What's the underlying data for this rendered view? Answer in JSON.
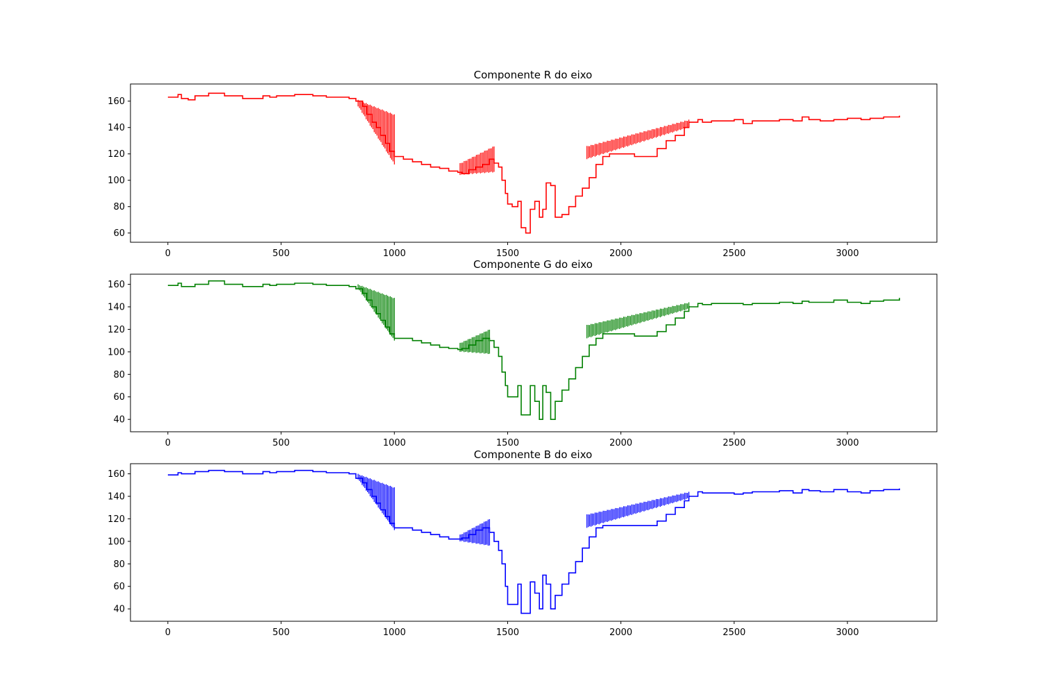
{
  "chart_data": [
    {
      "type": "line",
      "title": "Componente R do eixo",
      "color": "#ff0000",
      "xlim": [
        -165,
        3395
      ],
      "ylim": [
        53,
        173
      ],
      "xticks": [
        0,
        500,
        1000,
        1500,
        2000,
        2500,
        3000
      ],
      "yticks": [
        60,
        80,
        100,
        120,
        140,
        160
      ],
      "series": [
        {
          "x": [
            0,
            30,
            45,
            60,
            90,
            120,
            160,
            180,
            250,
            320,
            330,
            420,
            450,
            480,
            560,
            640,
            700,
            760,
            800,
            830,
            860,
            880,
            900,
            920,
            940,
            960,
            980,
            1000,
            1040,
            1080,
            1120,
            1160,
            1200,
            1240,
            1280,
            1300,
            1330,
            1360,
            1390,
            1420,
            1440,
            1460,
            1475,
            1490,
            1500,
            1520,
            1545,
            1560,
            1580,
            1600,
            1620,
            1640,
            1655,
            1670,
            1690,
            1710,
            1740,
            1770,
            1800,
            1830,
            1860,
            1890,
            1920,
            1950,
            2000,
            2060,
            2120,
            2160,
            2200,
            2240,
            2280,
            2300,
            2340,
            2360,
            2400,
            2450,
            2500,
            2540,
            2580,
            2640,
            2700,
            2760,
            2800,
            2830,
            2880,
            2940,
            3000,
            3060,
            3100,
            3160,
            3230
          ],
          "y": [
            163,
            163,
            165,
            162,
            161,
            164,
            164,
            166,
            164,
            164,
            162,
            164,
            163,
            164,
            165,
            164,
            163,
            163,
            162,
            160,
            156,
            150,
            144,
            140,
            134,
            128,
            122,
            118,
            116,
            114,
            112,
            110,
            109,
            107,
            106,
            105,
            108,
            110,
            112,
            116,
            113,
            110,
            100,
            90,
            82,
            80,
            84,
            64,
            60,
            78,
            84,
            72,
            78,
            98,
            96,
            72,
            74,
            80,
            88,
            94,
            102,
            112,
            118,
            120,
            120,
            118,
            118,
            124,
            130,
            134,
            140,
            144,
            146,
            144,
            145,
            145,
            146,
            143,
            145,
            145,
            146,
            145,
            148,
            146,
            145,
            146,
            147,
            146,
            147,
            148,
            149
          ]
        }
      ],
      "hatch_bands": [
        {
          "x": [
            840,
            1000
          ],
          "low": [
            156,
            112
          ],
          "high": [
            161,
            150
          ]
        },
        {
          "x": [
            1290,
            1440
          ],
          "low": [
            104,
            106
          ],
          "high": [
            113,
            126
          ]
        },
        {
          "x": [
            1850,
            2300
          ],
          "low": [
            116,
            140
          ],
          "high": [
            126,
            146
          ]
        }
      ]
    },
    {
      "type": "line",
      "title": "Componente G do eixo",
      "color": "#008000",
      "xlim": [
        -165,
        3395
      ],
      "ylim": [
        29,
        169
      ],
      "xticks": [
        0,
        500,
        1000,
        1500,
        2000,
        2500,
        3000
      ],
      "yticks": [
        40,
        60,
        80,
        100,
        120,
        140,
        160
      ],
      "series": [
        {
          "x": [
            0,
            30,
            45,
            60,
            90,
            120,
            160,
            180,
            250,
            320,
            330,
            420,
            450,
            480,
            560,
            640,
            700,
            760,
            800,
            830,
            860,
            880,
            900,
            920,
            940,
            960,
            980,
            1000,
            1040,
            1080,
            1120,
            1160,
            1200,
            1240,
            1280,
            1300,
            1330,
            1360,
            1390,
            1420,
            1440,
            1460,
            1475,
            1490,
            1500,
            1520,
            1545,
            1560,
            1580,
            1600,
            1620,
            1640,
            1655,
            1670,
            1690,
            1710,
            1740,
            1770,
            1800,
            1830,
            1860,
            1890,
            1920,
            1950,
            2000,
            2060,
            2120,
            2160,
            2200,
            2240,
            2280,
            2300,
            2340,
            2360,
            2400,
            2450,
            2500,
            2540,
            2580,
            2640,
            2700,
            2760,
            2800,
            2830,
            2880,
            2940,
            3000,
            3060,
            3100,
            3160,
            3230
          ],
          "y": [
            159,
            159,
            161,
            158,
            158,
            160,
            160,
            163,
            160,
            160,
            158,
            160,
            159,
            160,
            161,
            160,
            159,
            159,
            158,
            156,
            152,
            146,
            140,
            134,
            128,
            122,
            116,
            112,
            112,
            110,
            108,
            106,
            104,
            103,
            102,
            103,
            106,
            110,
            112,
            110,
            104,
            96,
            82,
            70,
            60,
            60,
            70,
            44,
            44,
            70,
            56,
            40,
            70,
            64,
            40,
            56,
            66,
            76,
            86,
            96,
            106,
            112,
            116,
            116,
            116,
            114,
            114,
            118,
            124,
            130,
            136,
            140,
            143,
            142,
            143,
            143,
            143,
            142,
            143,
            143,
            144,
            143,
            145,
            144,
            144,
            146,
            144,
            143,
            145,
            146,
            148
          ]
        }
      ],
      "hatch_bands": [
        {
          "x": [
            840,
            1000
          ],
          "low": [
            156,
            110
          ],
          "high": [
            160,
            148
          ]
        },
        {
          "x": [
            1290,
            1420
          ],
          "low": [
            100,
            98
          ],
          "high": [
            108,
            120
          ]
        },
        {
          "x": [
            1850,
            2300
          ],
          "low": [
            112,
            138
          ],
          "high": [
            124,
            144
          ]
        }
      ]
    },
    {
      "type": "line",
      "title": "Componente B do eixo",
      "color": "#0000ff",
      "xlim": [
        -165,
        3395
      ],
      "ylim": [
        29,
        169
      ],
      "xticks": [
        0,
        500,
        1000,
        1500,
        2000,
        2500,
        3000
      ],
      "yticks": [
        40,
        60,
        80,
        100,
        120,
        140,
        160
      ],
      "series": [
        {
          "x": [
            0,
            30,
            45,
            60,
            90,
            120,
            160,
            180,
            250,
            320,
            330,
            420,
            450,
            480,
            560,
            640,
            700,
            760,
            800,
            830,
            860,
            880,
            900,
            920,
            940,
            960,
            980,
            1000,
            1040,
            1080,
            1120,
            1160,
            1200,
            1240,
            1280,
            1300,
            1330,
            1360,
            1390,
            1420,
            1440,
            1460,
            1475,
            1490,
            1500,
            1520,
            1545,
            1560,
            1580,
            1600,
            1620,
            1640,
            1655,
            1670,
            1690,
            1710,
            1740,
            1770,
            1800,
            1830,
            1860,
            1890,
            1920,
            1950,
            2000,
            2060,
            2120,
            2160,
            2200,
            2240,
            2280,
            2300,
            2340,
            2360,
            2400,
            2450,
            2500,
            2540,
            2580,
            2640,
            2700,
            2760,
            2800,
            2830,
            2880,
            2940,
            3000,
            3060,
            3100,
            3160,
            3230
          ],
          "y": [
            159,
            159,
            161,
            160,
            160,
            162,
            162,
            163,
            162,
            162,
            160,
            162,
            161,
            162,
            163,
            162,
            161,
            161,
            160,
            156,
            152,
            146,
            140,
            134,
            128,
            122,
            116,
            112,
            112,
            110,
            108,
            106,
            104,
            102,
            102,
            103,
            106,
            110,
            112,
            108,
            100,
            92,
            80,
            60,
            44,
            44,
            62,
            36,
            36,
            64,
            54,
            40,
            70,
            62,
            40,
            52,
            62,
            72,
            82,
            94,
            104,
            112,
            114,
            114,
            114,
            114,
            114,
            118,
            124,
            130,
            136,
            140,
            144,
            143,
            143,
            143,
            142,
            143,
            144,
            144,
            145,
            143,
            146,
            145,
            144,
            146,
            144,
            143,
            145,
            146,
            147
          ]
        }
      ],
      "hatch_bands": [
        {
          "x": [
            840,
            1000
          ],
          "low": [
            155,
            110
          ],
          "high": [
            160,
            148
          ]
        },
        {
          "x": [
            1290,
            1420
          ],
          "low": [
            100,
            96
          ],
          "high": [
            106,
            120
          ]
        },
        {
          "x": [
            1850,
            2300
          ],
          "low": [
            112,
            138
          ],
          "high": [
            124,
            144
          ]
        }
      ]
    }
  ]
}
